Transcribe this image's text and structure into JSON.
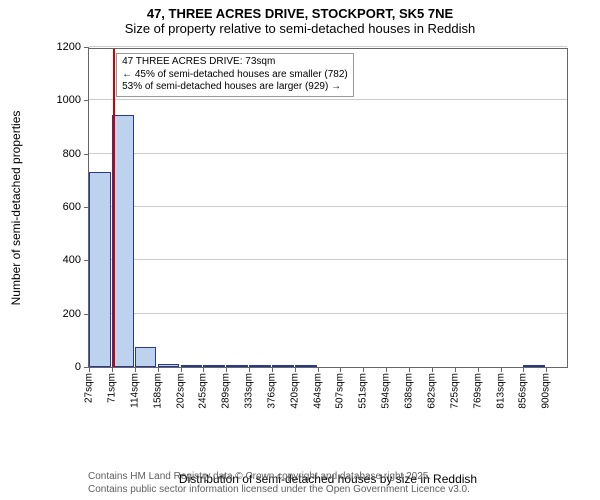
{
  "title": {
    "line1": "47, THREE ACRES DRIVE, STOCKPORT, SK5 7NE",
    "line2": "Size of property relative to semi-detached houses in Reddish",
    "fontsize": 13
  },
  "chart": {
    "type": "histogram",
    "ylabel": "Number of semi-detached properties",
    "xlabel": "Distribution of semi-detached houses by size in Reddish",
    "label_fontsize": 12,
    "tick_fontsize": 11,
    "background_color": "#ffffff",
    "grid_color": "#cccccc",
    "axis_color": "#666666",
    "bar_fill": "#bcd2ee",
    "bar_border": "#2a3a8a",
    "ylim": [
      0,
      1200
    ],
    "ytick_step": 200,
    "x_data_min": 27,
    "x_data_max": 900,
    "xticks": [
      27,
      71,
      114,
      158,
      202,
      245,
      289,
      333,
      376,
      420,
      464,
      507,
      551,
      594,
      638,
      682,
      725,
      769,
      813,
      856,
      900
    ],
    "xtick_unit": "sqm",
    "bar_bin_width": 43.6,
    "bars": [
      {
        "x": 27,
        "value": 730
      },
      {
        "x": 71,
        "value": 945
      },
      {
        "x": 114,
        "value": 75
      },
      {
        "x": 158,
        "value": 10
      },
      {
        "x": 202,
        "value": 4
      },
      {
        "x": 245,
        "value": 2
      },
      {
        "x": 289,
        "value": 2
      },
      {
        "x": 333,
        "value": 1
      },
      {
        "x": 376,
        "value": 1
      },
      {
        "x": 420,
        "value": 1
      },
      {
        "x": 464,
        "value": 0
      },
      {
        "x": 507,
        "value": 0
      },
      {
        "x": 551,
        "value": 0
      },
      {
        "x": 594,
        "value": 0
      },
      {
        "x": 638,
        "value": 0
      },
      {
        "x": 682,
        "value": 0
      },
      {
        "x": 725,
        "value": 0
      },
      {
        "x": 769,
        "value": 0
      },
      {
        "x": 813,
        "value": 0
      },
      {
        "x": 856,
        "value": 1
      }
    ],
    "marker": {
      "x_value": 73,
      "color": "#cc0000"
    },
    "annotation": {
      "line1": "47 THREE ACRES DRIVE: 73sqm",
      "line2": "← 45% of semi-detached houses are smaller (782)",
      "line3": "53% of semi-detached houses are larger (929) →",
      "border_color": "#999999",
      "box_left_x": 73
    }
  },
  "footer": {
    "line1": "Contains HM Land Registry data © Crown copyright and database right 2025.",
    "line2": "Contains public sector information licensed under the Open Government Licence v3.0.",
    "color": "#606060",
    "fontsize": 10
  }
}
